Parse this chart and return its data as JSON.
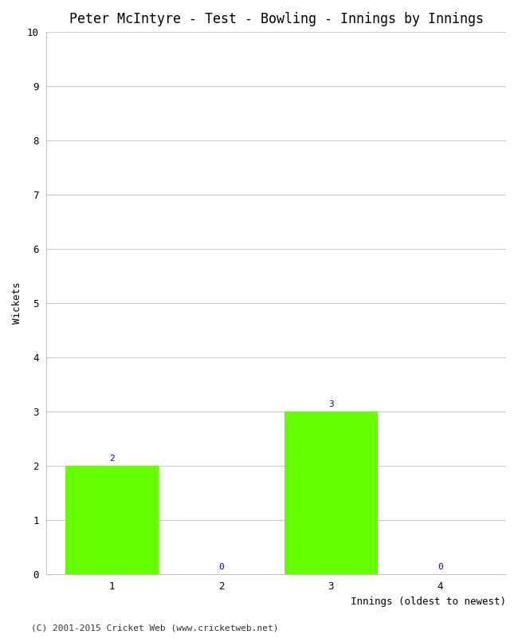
{
  "title": "Peter McIntyre - Test - Bowling - Innings by Innings",
  "xlabel": "Innings (oldest to newest)",
  "ylabel": "Wickets",
  "categories": [
    "1",
    "2",
    "3",
    "4"
  ],
  "values": [
    2,
    0,
    3,
    0
  ],
  "bar_color": "#66ff00",
  "bar_edgecolor": "#66ff00",
  "annotation_color": "#0000cc",
  "ylim": [
    0,
    10
  ],
  "yticks": [
    0,
    1,
    2,
    3,
    4,
    5,
    6,
    7,
    8,
    9,
    10
  ],
  "background_color": "#ffffff",
  "grid_color": "#cccccc",
  "title_fontsize": 12,
  "axis_label_fontsize": 9,
  "tick_fontsize": 9,
  "annotation_fontsize": 8,
  "footer_text": "(C) 2001-2015 Cricket Web (www.cricketweb.net)",
  "footer_fontsize": 8
}
